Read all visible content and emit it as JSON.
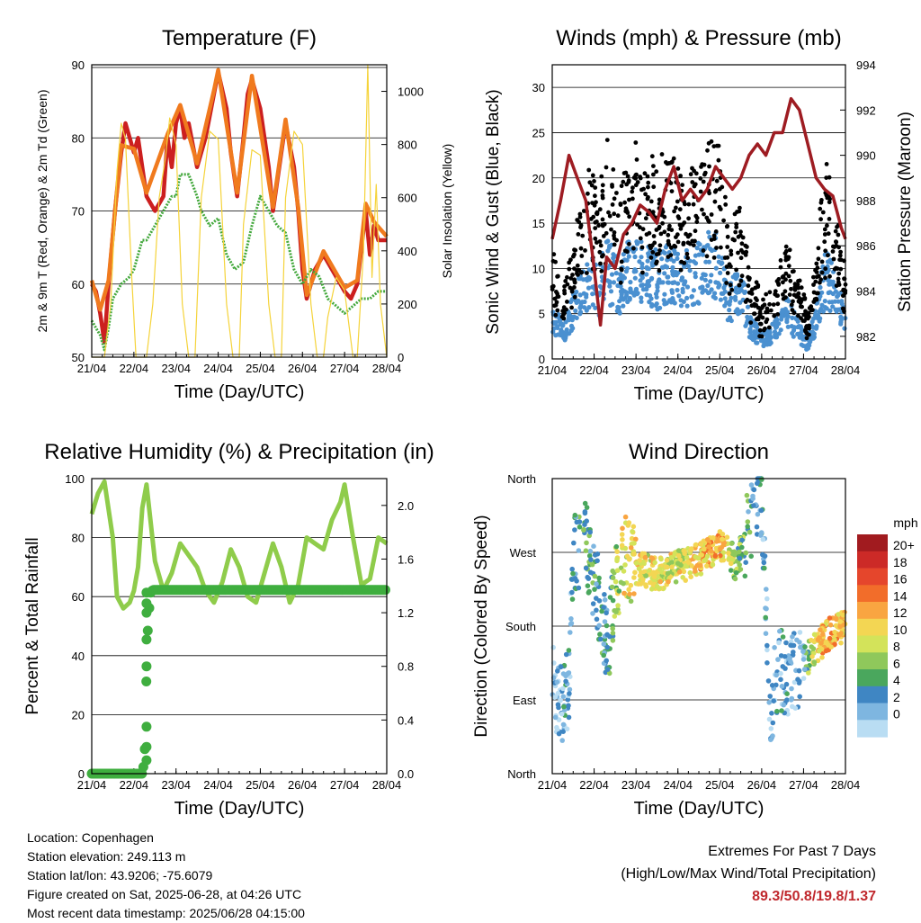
{
  "time_ticks": [
    "21/04",
    "22/04",
    "23/04",
    "24/04",
    "25/04",
    "26/04",
    "27/04",
    "28/04"
  ],
  "chart_data": [
    {
      "type": "line",
      "title": "Temperature (F)",
      "xlabel": "Time (Day/UTC)",
      "ylabel": "2m & 9m T (Red, Orange) & 2m Td (Green)",
      "y2label": "Solar Insolation (Yellow)",
      "ylim": [
        50,
        90
      ],
      "yticks": [
        50,
        60,
        70,
        80,
        90
      ],
      "y2lim": [
        0,
        1100
      ],
      "y2ticks": [
        0,
        200,
        400,
        600,
        800,
        1000
      ],
      "xlim": [
        0,
        7
      ],
      "series": [
        {
          "name": "2m T",
          "color": "#cc1f1f",
          "axis": "left",
          "x": [
            0,
            0.1,
            0.2,
            0.3,
            0.4,
            0.55,
            0.7,
            0.8,
            0.9,
            1.0,
            1.1,
            1.2,
            1.3,
            1.5,
            1.7,
            1.8,
            1.9,
            2.0,
            2.1,
            2.2,
            2.3,
            2.5,
            2.7,
            2.9,
            3.0,
            3.2,
            3.3,
            3.45,
            3.6,
            3.7,
            3.8,
            4.0,
            4.2,
            4.3,
            4.45,
            4.6,
            4.8,
            4.9,
            5.0,
            5.1,
            5.3,
            5.5,
            5.7,
            5.9,
            6.0,
            6.15,
            6.3,
            6.4,
            6.5,
            6.6,
            6.7,
            6.8,
            7.0
          ],
          "y": [
            60,
            59,
            56,
            52,
            60,
            70,
            78,
            82,
            80,
            78,
            80,
            76,
            72,
            70,
            72,
            80,
            76,
            82,
            84,
            80,
            82,
            76,
            80,
            86,
            89,
            84,
            78,
            72,
            80,
            86,
            88,
            84,
            76,
            70,
            76,
            82,
            76,
            70,
            62,
            58,
            62,
            64,
            62,
            60,
            59,
            58,
            60,
            65,
            70,
            64,
            68,
            66,
            66
          ]
        },
        {
          "name": "9m T",
          "color": "#f07a1e",
          "axis": "left",
          "x": [
            0,
            0.2,
            0.4,
            0.7,
            1.0,
            1.3,
            1.8,
            2.1,
            2.5,
            2.9,
            3.0,
            3.45,
            3.8,
            4.3,
            4.6,
            4.9,
            5.1,
            5.5,
            6.0,
            6.3,
            6.5,
            6.7,
            7.0
          ],
          "y": [
            60.5,
            56.5,
            60.5,
            79,
            78.5,
            72.5,
            80.5,
            84.5,
            76.5,
            86.5,
            89.3,
            72.5,
            88.5,
            70.5,
            82.5,
            70.5,
            58.5,
            64.5,
            59.5,
            60.5,
            71,
            68.5,
            66.5
          ]
        },
        {
          "name": "2m Td",
          "color": "#43a83c",
          "axis": "left",
          "x": [
            0,
            0.1,
            0.2,
            0.3,
            0.4,
            0.5,
            0.7,
            0.9,
            1.0,
            1.1,
            1.2,
            1.3,
            1.5,
            1.7,
            1.9,
            2.0,
            2.1,
            2.3,
            2.5,
            2.6,
            2.8,
            3.0,
            3.2,
            3.4,
            3.6,
            3.8,
            4.0,
            4.2,
            4.4,
            4.6,
            4.8,
            5.0,
            5.2,
            5.4,
            5.6,
            5.8,
            6.0,
            6.2,
            6.4,
            6.6,
            6.8,
            7.0
          ],
          "y": [
            55,
            54,
            53,
            51,
            54,
            58,
            60,
            61,
            62,
            64,
            66,
            66,
            68,
            70,
            72,
            72,
            75,
            75,
            72,
            70,
            68,
            69,
            64,
            62,
            63,
            68,
            72,
            70,
            68,
            67,
            62,
            60,
            62,
            61,
            58,
            57,
            56,
            57,
            58,
            58,
            59,
            59
          ]
        },
        {
          "name": "Solar Insolation",
          "color": "#f5d33a",
          "axis": "right",
          "x": [
            0,
            0.3,
            0.45,
            0.6,
            0.7,
            0.8,
            0.95,
            1.05,
            1.2,
            1.3,
            1.45,
            1.6,
            1.75,
            1.85,
            2.0,
            2.15,
            2.3,
            2.45,
            2.6,
            2.8,
            3.0,
            3.2,
            3.35,
            3.5,
            3.6,
            3.8,
            4.0,
            4.2,
            4.35,
            4.5,
            4.6,
            4.8,
            5.0,
            5.2,
            5.35,
            5.5,
            5.6,
            5.8,
            6.0,
            6.2,
            6.3,
            6.45,
            6.55,
            6.65,
            6.75,
            6.85,
            7.0
          ],
          "y": [
            0,
            0,
            200,
            700,
            880,
            820,
            300,
            0,
            0,
            0,
            200,
            600,
            750,
            900,
            800,
            200,
            0,
            0,
            600,
            850,
            820,
            200,
            0,
            0,
            500,
            780,
            760,
            200,
            0,
            0,
            600,
            850,
            800,
            200,
            0,
            0,
            150,
            300,
            250,
            0,
            0,
            400,
            1100,
            300,
            650,
            200,
            0
          ]
        }
      ]
    },
    {
      "type": "scatter",
      "title": "Winds (mph) & Pressure (mb)",
      "xlabel": "Time (Day/UTC)",
      "ylabel": "Sonic Wind & Gust (Blue, Black)",
      "y2label": "Station Pressure (Maroon)",
      "ylim": [
        0,
        32.5
      ],
      "yticks": [
        0,
        5,
        10,
        15,
        20,
        25,
        30
      ],
      "y2lim": [
        981,
        994
      ],
      "y2ticks": [
        982,
        984,
        986,
        988,
        990,
        992,
        994
      ],
      "xlim": [
        0,
        7
      ],
      "series": [
        {
          "name": "Station Pressure",
          "color": "#9e1c22",
          "axis": "right",
          "x": [
            0,
            0.2,
            0.4,
            0.6,
            0.8,
            1.0,
            1.15,
            1.3,
            1.5,
            1.7,
            1.9,
            2.1,
            2.3,
            2.5,
            2.7,
            2.9,
            3.1,
            3.3,
            3.5,
            3.7,
            3.9,
            4.1,
            4.3,
            4.5,
            4.7,
            4.9,
            5.1,
            5.3,
            5.5,
            5.7,
            5.9,
            6.1,
            6.3,
            6.5,
            6.7,
            6.8,
            6.9,
            7.0
          ],
          "y": [
            986.3,
            988.0,
            990.0,
            989.0,
            988.0,
            985.0,
            982.5,
            985.5,
            985.0,
            986.5,
            987.0,
            987.8,
            987.5,
            987.0,
            988.5,
            989.5,
            988.0,
            988.5,
            988.0,
            988.5,
            989.5,
            989.0,
            988.5,
            989.0,
            990.0,
            990.5,
            990.0,
            991.0,
            991.0,
            992.5,
            992.0,
            990.5,
            989.0,
            988.5,
            988.2,
            987.5,
            986.8,
            986.3
          ]
        }
      ]
    },
    {
      "type": "line",
      "title": "Relative Humidity (%) & Precipitation (in)",
      "xlabel": "Time (Day/UTC)",
      "ylabel": "Percent & Total Rainfall",
      "ylim": [
        0,
        100
      ],
      "yticks": [
        0,
        20,
        40,
        60,
        80,
        100
      ],
      "y2lim": [
        0,
        2.2
      ],
      "y2ticks": [
        "0.0",
        "0.4",
        "0.8",
        "1.2",
        "1.6",
        "2.0"
      ],
      "xlim": [
        0,
        7
      ],
      "series": [
        {
          "name": "Relative Humidity",
          "color": "#8fcc4b",
          "axis": "left",
          "x": [
            0,
            0.15,
            0.3,
            0.5,
            0.6,
            0.75,
            0.9,
            1.0,
            1.1,
            1.2,
            1.3,
            1.5,
            1.7,
            1.9,
            2.1,
            2.3,
            2.5,
            2.7,
            2.9,
            3.1,
            3.3,
            3.5,
            3.7,
            3.9,
            4.1,
            4.3,
            4.5,
            4.7,
            4.9,
            5.1,
            5.3,
            5.5,
            5.7,
            5.9,
            6.0,
            6.2,
            6.4,
            6.6,
            6.8,
            7.0
          ],
          "y": [
            88,
            95,
            99,
            80,
            60,
            56,
            58,
            62,
            70,
            90,
            98,
            72,
            62,
            68,
            78,
            74,
            70,
            62,
            58,
            65,
            76,
            70,
            60,
            58,
            68,
            78,
            70,
            58,
            64,
            80,
            78,
            76,
            86,
            92,
            98,
            80,
            64,
            66,
            80,
            78
          ]
        },
        {
          "name": "Total Precipitation",
          "color": "#3fae3f",
          "axis": "right",
          "x": [
            0,
            1.2,
            1.25,
            1.28,
            1.3,
            1.32,
            1.35,
            1.38,
            1.4,
            1.45,
            2.0,
            3.0,
            4.0,
            5.0,
            6.0,
            7.0
          ],
          "y": [
            0,
            0,
            0.1,
            0.35,
            0.8,
            1.0,
            1.2,
            1.27,
            1.35,
            1.37,
            1.37,
            1.37,
            1.37,
            1.37,
            1.37,
            1.37
          ]
        }
      ]
    },
    {
      "type": "scatter",
      "title": "Wind Direction",
      "xlabel": "Time (Day/UTC)",
      "ylabel": "Direction (Colored By Speed)",
      "yticks": [
        "North",
        "East",
        "South",
        "West",
        "North"
      ],
      "xlim": [
        0,
        7
      ],
      "colorbar": {
        "title": "mph",
        "labels": [
          "20+",
          "18",
          "16",
          "14",
          "12",
          "10",
          "8",
          "6",
          "4",
          "2",
          "0"
        ],
        "colors": [
          "#a11b1f",
          "#cc2a27",
          "#e5462c",
          "#f26d2a",
          "#f9a541",
          "#f3d653",
          "#d3e35a",
          "#8fc85b",
          "#4aa75d",
          "#3f86c3",
          "#7eb6e0",
          "#b9ddf3"
        ]
      }
    }
  ],
  "info": {
    "location": "Location: Copenhagen",
    "elevation": "Station elevation: 249.113 m",
    "latlon": "Station lat/lon: 43.9206; -75.6079",
    "created": "Figure created on Sat, 2025-06-28, at 04:26 UTC",
    "recent": "Most recent data timestamp: 2025/06/28 04:15:00"
  },
  "extremes": {
    "title": "Extremes For Past 7 Days",
    "subtitle": "(High/Low/Max Wind/Total Precipitation)",
    "values": "89.3/50.8/19.8/1.37"
  }
}
